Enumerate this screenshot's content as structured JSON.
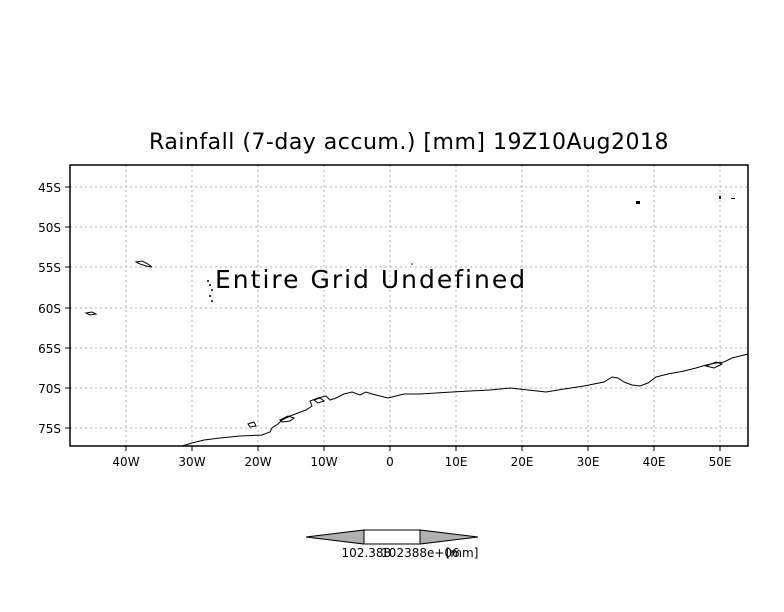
{
  "title": "Rainfall (7-day accum.) [mm] 19Z10Aug2018",
  "message": "Entire Grid Undefined",
  "lon_labels": [
    "40W",
    "30W",
    "20W",
    "10W",
    "0",
    "10E",
    "20E",
    "30E",
    "40E",
    "50E"
  ],
  "lat_labels": [
    "45S",
    "50S",
    "55S",
    "60S",
    "65S",
    "70S",
    "75S"
  ],
  "colorbar": {
    "label_left": "102.388",
    "label_right": "102388e+06",
    "unit": "[mm]",
    "colors": {
      "ends": "#b0b0b0",
      "middle": "#ffffff"
    }
  },
  "map": {
    "extent": {
      "lon_min": -48,
      "lon_max": 54,
      "lat_min": -77.2,
      "lat_max": -42.2
    },
    "grid": true,
    "coastline_color": "#000000"
  }
}
